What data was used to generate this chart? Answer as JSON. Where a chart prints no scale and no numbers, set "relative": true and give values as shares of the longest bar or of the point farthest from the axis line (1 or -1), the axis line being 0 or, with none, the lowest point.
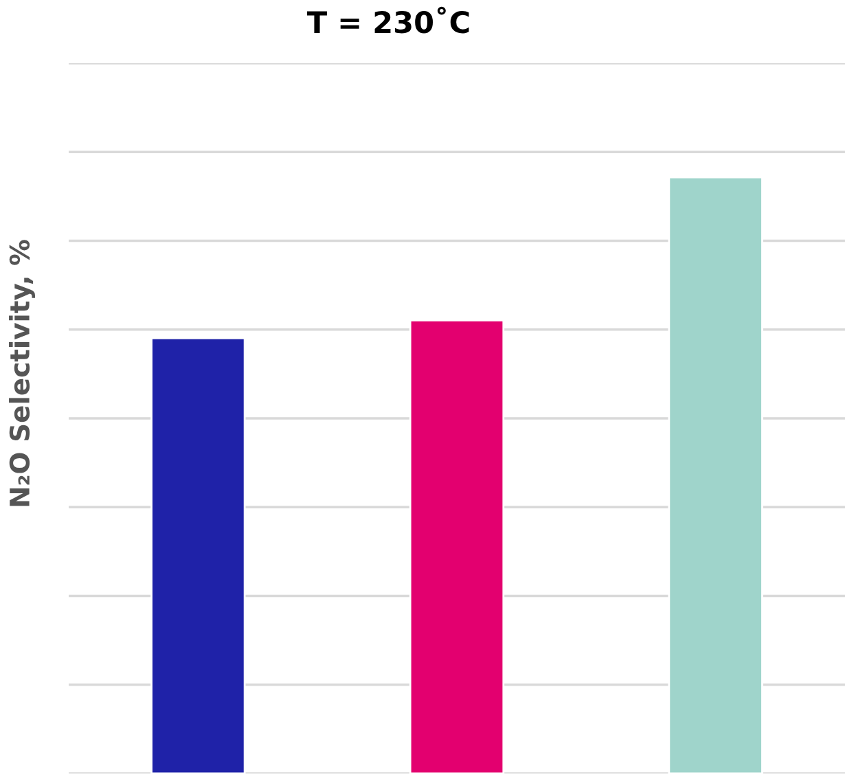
{
  "chart_data": {
    "type": "bar",
    "title": "T = 230˚C",
    "ylabel": "N₂O Selectivity, %",
    "categories": [
      null,
      null,
      null
    ],
    "values": [
      0.73,
      0.76,
      1.0
    ],
    "colors": [
      "#1f22a8",
      "#e3006f",
      "#9fd4cb"
    ],
    "relative": true,
    "grid": "y",
    "legend": false
  }
}
